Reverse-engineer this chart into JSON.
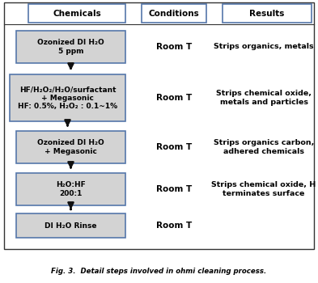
{
  "fig_width": 3.93,
  "fig_height": 3.5,
  "dpi": 100,
  "background_color": "#ffffff",
  "border_color": "#333333",
  "box_fill": "#d3d3d3",
  "box_fill_white": "#ffffff",
  "box_border_color": "#5577aa",
  "arrow_color": "#111111",
  "text_color": "#000000",
  "caption": "Fig. 3.  Detail steps involved in ohmi cleaning process.",
  "headers": [
    "Chemicals",
    "Conditions",
    "Results"
  ],
  "steps": [
    {
      "chem_text": "Ozonized DI H₂O\n5 ppm",
      "cond_text": "Room T",
      "result_text": "Strips organics, metals",
      "lines": 2
    },
    {
      "chem_text": "HF/H₂O₂/H₂O/surfactant\n+ Megasonic\nHF: 0.5%, H₂O₂ : 0.1~1%",
      "cond_text": "Room T",
      "result_text": "Strips chemical oxide,\nmetals and particles",
      "lines": 3
    },
    {
      "chem_text": "Ozonized DI H₂O\n+ Megasonic",
      "cond_text": "Room T",
      "result_text": "Strips organics carbon,\nadhered chemicals",
      "lines": 2
    },
    {
      "chem_text": "H₂O:HF\n200:1",
      "cond_text": "Room T",
      "result_text": "Strips chemical oxide, H\nterminates surface",
      "lines": 2
    },
    {
      "chem_text": "DI H₂O Rinse",
      "cond_text": "Room T",
      "result_text": "",
      "lines": 1
    }
  ]
}
